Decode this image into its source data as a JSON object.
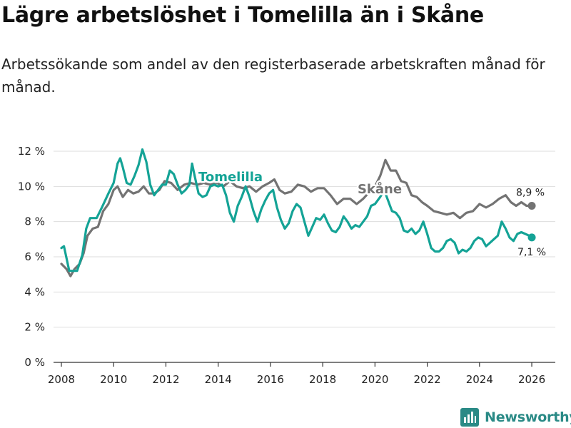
{
  "title": "Lägre arbetslöshet i Tomelilla än i Skåne",
  "subtitle": "Arbetssökande som andel av den registerbaserade arbetskraften månad för månad.",
  "brand": {
    "name": "Newsworthy",
    "color": "#2a8a86"
  },
  "colors": {
    "tomelilla": "#14a396",
    "skane": "#737373",
    "grid": "#dddddd",
    "axis": "#333333"
  },
  "chart_data": {
    "type": "line",
    "title": "Lägre arbetslöshet i Tomelilla än i Skåne",
    "xlabel": "",
    "ylabel": "",
    "xlim": [
      2007.7,
      2026.9
    ],
    "ylim": [
      0,
      12
    ],
    "grid": true,
    "legend": "inline labels",
    "x_ticks": [
      2008,
      2010,
      2012,
      2014,
      2016,
      2018,
      2020,
      2022,
      2024,
      2026
    ],
    "x_tick_labels": [
      "2008",
      "2010",
      "2012",
      "2014",
      "2016",
      "2018",
      "2020",
      "2022",
      "2024",
      "2026"
    ],
    "y_ticks": [
      0,
      2,
      4,
      6,
      8,
      10,
      12
    ],
    "y_tick_labels": [
      "0 %",
      "2 %",
      "4 %",
      "6 %",
      "8 %",
      "10 %",
      "12 %"
    ],
    "series": [
      {
        "name": "Skåne",
        "label": "Skåne",
        "color": "#737373",
        "end_label": "8,9 %",
        "points": [
          [
            2008.0,
            5.6
          ],
          [
            2008.2,
            5.3
          ],
          [
            2008.35,
            4.9
          ],
          [
            2008.5,
            5.3
          ],
          [
            2008.7,
            5.6
          ],
          [
            2008.85,
            6.2
          ],
          [
            2009.0,
            7.2
          ],
          [
            2009.2,
            7.6
          ],
          [
            2009.4,
            7.7
          ],
          [
            2009.6,
            8.6
          ],
          [
            2009.8,
            9.0
          ],
          [
            2010.0,
            9.8
          ],
          [
            2010.15,
            10.0
          ],
          [
            2010.35,
            9.4
          ],
          [
            2010.55,
            9.8
          ],
          [
            2010.75,
            9.6
          ],
          [
            2010.95,
            9.7
          ],
          [
            2011.15,
            10.0
          ],
          [
            2011.35,
            9.6
          ],
          [
            2011.55,
            9.6
          ],
          [
            2011.75,
            9.8
          ],
          [
            2011.95,
            10.3
          ],
          [
            2012.2,
            10.2
          ],
          [
            2012.45,
            9.8
          ],
          [
            2012.7,
            10.1
          ],
          [
            2012.95,
            10.2
          ],
          [
            2013.2,
            10.1
          ],
          [
            2013.45,
            10.2
          ],
          [
            2013.7,
            10.1
          ],
          [
            2013.95,
            10.2
          ],
          [
            2014.2,
            10.0
          ],
          [
            2014.45,
            10.3
          ],
          [
            2014.7,
            10.0
          ],
          [
            2014.95,
            9.9
          ],
          [
            2015.2,
            10.0
          ],
          [
            2015.45,
            9.7
          ],
          [
            2015.7,
            10.0
          ],
          [
            2015.95,
            10.2
          ],
          [
            2016.15,
            10.4
          ],
          [
            2016.35,
            9.8
          ],
          [
            2016.55,
            9.6
          ],
          [
            2016.8,
            9.7
          ],
          [
            2017.05,
            10.1
          ],
          [
            2017.3,
            10.0
          ],
          [
            2017.55,
            9.7
          ],
          [
            2017.8,
            9.9
          ],
          [
            2018.05,
            9.9
          ],
          [
            2018.3,
            9.5
          ],
          [
            2018.55,
            9.0
          ],
          [
            2018.8,
            9.3
          ],
          [
            2019.05,
            9.3
          ],
          [
            2019.3,
            9.0
          ],
          [
            2019.55,
            9.3
          ],
          [
            2019.8,
            9.7
          ],
          [
            2020.0,
            10.0
          ],
          [
            2020.2,
            10.6
          ],
          [
            2020.4,
            11.5
          ],
          [
            2020.6,
            10.9
          ],
          [
            2020.8,
            10.9
          ],
          [
            2021.0,
            10.3
          ],
          [
            2021.2,
            10.2
          ],
          [
            2021.4,
            9.5
          ],
          [
            2021.6,
            9.4
          ],
          [
            2021.8,
            9.1
          ],
          [
            2022.0,
            8.9
          ],
          [
            2022.25,
            8.6
          ],
          [
            2022.5,
            8.5
          ],
          [
            2022.75,
            8.4
          ],
          [
            2023.0,
            8.5
          ],
          [
            2023.25,
            8.2
          ],
          [
            2023.5,
            8.5
          ],
          [
            2023.75,
            8.6
          ],
          [
            2024.0,
            9.0
          ],
          [
            2024.25,
            8.8
          ],
          [
            2024.5,
            9.0
          ],
          [
            2024.75,
            9.3
          ],
          [
            2025.0,
            9.5
          ],
          [
            2025.2,
            9.1
          ],
          [
            2025.4,
            8.9
          ],
          [
            2025.6,
            9.1
          ],
          [
            2025.8,
            8.9
          ],
          [
            2026.0,
            8.9
          ]
        ]
      },
      {
        "name": "Tomelilla",
        "label": "Tomelilla",
        "color": "#14a396",
        "end_label": "7,1 %",
        "points": [
          [
            2008.0,
            6.5
          ],
          [
            2008.1,
            6.6
          ],
          [
            2008.3,
            5.2
          ],
          [
            2008.45,
            5.2
          ],
          [
            2008.6,
            5.2
          ],
          [
            2008.8,
            6.1
          ],
          [
            2008.95,
            7.6
          ],
          [
            2009.1,
            8.2
          ],
          [
            2009.35,
            8.2
          ],
          [
            2009.55,
            8.8
          ],
          [
            2009.8,
            9.6
          ],
          [
            2010.0,
            10.2
          ],
          [
            2010.15,
            11.3
          ],
          [
            2010.25,
            11.6
          ],
          [
            2010.35,
            11.1
          ],
          [
            2010.5,
            10.2
          ],
          [
            2010.65,
            10.1
          ],
          [
            2010.8,
            10.6
          ],
          [
            2010.95,
            11.2
          ],
          [
            2011.1,
            12.1
          ],
          [
            2011.25,
            11.4
          ],
          [
            2011.4,
            10.1
          ],
          [
            2011.55,
            9.5
          ],
          [
            2011.7,
            9.8
          ],
          [
            2011.85,
            10.1
          ],
          [
            2012.0,
            10.1
          ],
          [
            2012.15,
            10.9
          ],
          [
            2012.3,
            10.7
          ],
          [
            2012.45,
            10.1
          ],
          [
            2012.6,
            9.6
          ],
          [
            2012.75,
            9.8
          ],
          [
            2012.9,
            10.1
          ],
          [
            2013.0,
            11.3
          ],
          [
            2013.1,
            10.6
          ],
          [
            2013.25,
            9.6
          ],
          [
            2013.4,
            9.4
          ],
          [
            2013.55,
            9.5
          ],
          [
            2013.7,
            10.0
          ],
          [
            2013.85,
            10.1
          ],
          [
            2014.0,
            10.0
          ],
          [
            2014.15,
            10.1
          ],
          [
            2014.3,
            9.5
          ],
          [
            2014.45,
            8.5
          ],
          [
            2014.6,
            8.0
          ],
          [
            2014.75,
            8.9
          ],
          [
            2014.9,
            9.4
          ],
          [
            2015.05,
            10.0
          ],
          [
            2015.2,
            9.4
          ],
          [
            2015.35,
            8.6
          ],
          [
            2015.5,
            8.0
          ],
          [
            2015.65,
            8.7
          ],
          [
            2015.8,
            9.2
          ],
          [
            2015.95,
            9.6
          ],
          [
            2016.1,
            9.8
          ],
          [
            2016.25,
            8.8
          ],
          [
            2016.4,
            8.1
          ],
          [
            2016.55,
            7.6
          ],
          [
            2016.7,
            7.9
          ],
          [
            2016.85,
            8.6
          ],
          [
            2017.0,
            9.0
          ],
          [
            2017.15,
            8.8
          ],
          [
            2017.3,
            8.0
          ],
          [
            2017.45,
            7.2
          ],
          [
            2017.6,
            7.7
          ],
          [
            2017.75,
            8.2
          ],
          [
            2017.9,
            8.1
          ],
          [
            2018.05,
            8.4
          ],
          [
            2018.2,
            7.9
          ],
          [
            2018.35,
            7.5
          ],
          [
            2018.5,
            7.4
          ],
          [
            2018.65,
            7.7
          ],
          [
            2018.8,
            8.3
          ],
          [
            2018.95,
            8.0
          ],
          [
            2019.1,
            7.6
          ],
          [
            2019.25,
            7.8
          ],
          [
            2019.4,
            7.7
          ],
          [
            2019.55,
            8.0
          ],
          [
            2019.7,
            8.3
          ],
          [
            2019.85,
            8.9
          ],
          [
            2020.0,
            9.0
          ],
          [
            2020.2,
            9.4
          ],
          [
            2020.35,
            9.8
          ],
          [
            2020.5,
            9.2
          ],
          [
            2020.65,
            8.6
          ],
          [
            2020.8,
            8.5
          ],
          [
            2020.95,
            8.2
          ],
          [
            2021.1,
            7.5
          ],
          [
            2021.25,
            7.4
          ],
          [
            2021.4,
            7.6
          ],
          [
            2021.55,
            7.3
          ],
          [
            2021.7,
            7.5
          ],
          [
            2021.85,
            8.0
          ],
          [
            2022.0,
            7.3
          ],
          [
            2022.15,
            6.5
          ],
          [
            2022.3,
            6.3
          ],
          [
            2022.45,
            6.3
          ],
          [
            2022.6,
            6.5
          ],
          [
            2022.75,
            6.9
          ],
          [
            2022.9,
            7.0
          ],
          [
            2023.05,
            6.8
          ],
          [
            2023.2,
            6.2
          ],
          [
            2023.35,
            6.4
          ],
          [
            2023.5,
            6.3
          ],
          [
            2023.65,
            6.5
          ],
          [
            2023.8,
            6.9
          ],
          [
            2023.95,
            7.1
          ],
          [
            2024.1,
            7.0
          ],
          [
            2024.25,
            6.6
          ],
          [
            2024.4,
            6.8
          ],
          [
            2024.55,
            7.0
          ],
          [
            2024.7,
            7.2
          ],
          [
            2024.85,
            8.0
          ],
          [
            2025.0,
            7.6
          ],
          [
            2025.15,
            7.1
          ],
          [
            2025.3,
            6.9
          ],
          [
            2025.45,
            7.3
          ],
          [
            2025.6,
            7.4
          ],
          [
            2025.75,
            7.3
          ],
          [
            2025.9,
            7.2
          ],
          [
            2026.0,
            7.1
          ]
        ]
      }
    ]
  }
}
